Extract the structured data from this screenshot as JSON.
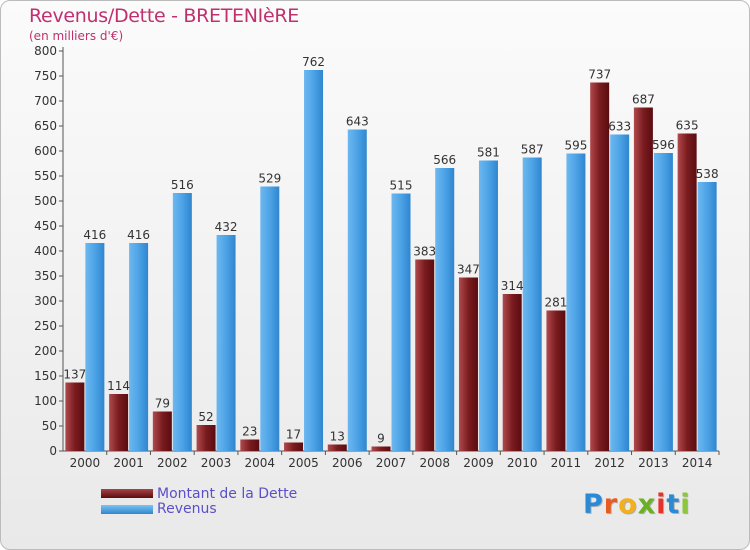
{
  "title": "Revenus/Dette - BRETENIèRE",
  "subtitle": "(en milliers d'€)",
  "logo": {
    "letters": [
      "P",
      "r",
      "o",
      "x",
      "i",
      "t",
      "i"
    ],
    "colors": [
      "#2b8ad6",
      "#e85a1e",
      "#f2b01e",
      "#6ab023",
      "#e6332a",
      "#2b8ad6",
      "#8cc63f"
    ]
  },
  "colors": {
    "dette": "#7a1c1f",
    "revenus": "#4da3e6",
    "title": "#c0306e",
    "legend_text": "#5a4fc8"
  },
  "chart_data": {
    "type": "bar",
    "categories": [
      "2000",
      "2001",
      "2002",
      "2003",
      "2004",
      "2005",
      "2006",
      "2007",
      "2008",
      "2009",
      "2010",
      "2011",
      "2012",
      "2013",
      "2014"
    ],
    "series": [
      {
        "name": "Montant de la Dette",
        "values": [
          137,
          114,
          79,
          52,
          23,
          17,
          13,
          9,
          383,
          347,
          314,
          281,
          737,
          687,
          635
        ]
      },
      {
        "name": "Revenus",
        "values": [
          416,
          416,
          516,
          432,
          529,
          762,
          643,
          515,
          566,
          581,
          587,
          595,
          633,
          596,
          538
        ]
      }
    ],
    "yticks": [
      "0",
      "50",
      "100",
      "150",
      "200",
      "250",
      "300",
      "350",
      "400",
      "450",
      "500",
      "550",
      "600",
      "650",
      "700",
      "750",
      "800"
    ],
    "ylim": [
      0,
      800
    ],
    "legend_position": "bottom-left",
    "grid": false
  }
}
